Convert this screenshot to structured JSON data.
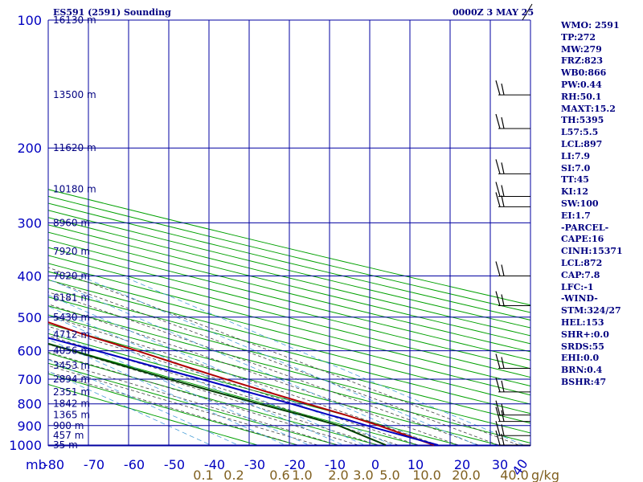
{
  "header": {
    "station": "ES591 (2591) Sounding",
    "time": "0000Z  3 MAY 25"
  },
  "stats": [
    "WMO: 2591",
    "TP:272",
    "MW:279",
    "FRZ:823",
    "WB0:866",
    "PW:0.44",
    "RH:50.1",
    "MAXT:15.2",
    "TH:5395",
    "L57:5.5",
    "LCL:897",
    "LI:7.9",
    "SI:7.0",
    "TT:45",
    "KI:12",
    "SW:100",
    "EI:1.7",
    "-PARCEL-",
    "CAPE:16",
    "CINH:15371",
    "LCL:872",
    "CAP:7.8",
    "LFC:-1",
    "-WIND-",
    "STM:324/27",
    "HEL:153",
    "SHR+:0.0",
    "SRDS:55",
    "EHI:0.0",
    "BRN:0.4",
    "BSHR:47"
  ],
  "colors": {
    "grid": "#0000a0",
    "dry_adiabat": "#00a000",
    "moist_adiabat": "#404040",
    "mixing_ratio": "#4a9fd8",
    "temperature": "#b00000",
    "dewpoint": "#004000",
    "parcel": "#0000c0",
    "axis_text": "#0000c0",
    "mixing_text": "#806020",
    "height_text": "#000080"
  },
  "chart_data": {
    "type": "line",
    "chart_kind": "skew-T log-P sounding",
    "x_axis_unit_label": "mb",
    "x_ticks": [
      -80,
      -70,
      -60,
      -50,
      -40,
      -30,
      -20,
      -10,
      0,
      10
    ],
    "y_ticks": [
      100,
      200,
      300,
      400,
      500,
      600,
      700,
      800,
      900,
      1000
    ],
    "y_scale": "log",
    "y_range": [
      1050,
      100
    ],
    "mixing_ratio_labels": [
      "0.1",
      "0.2",
      "0.6",
      "1.0",
      "2.0",
      "3.0",
      "5.0",
      "10.0",
      "20.0",
      "40.0"
    ],
    "mixing_ratio_unit": "g/kg",
    "right_tick_labels": [
      "20",
      "30",
      "40"
    ],
    "height_labels": [
      {
        "p": 100,
        "text": "16130 m"
      },
      {
        "p": 150,
        "text": "13500 m"
      },
      {
        "p": 200,
        "text": "11620 m"
      },
      {
        "p": 250,
        "text": "10180 m"
      },
      {
        "p": 300,
        "text": "8960 m"
      },
      {
        "p": 350,
        "text": "7920 m"
      },
      {
        "p": 400,
        "text": "7020 m"
      },
      {
        "p": 450,
        "text": "6181 m"
      },
      {
        "p": 500,
        "text": "5430 m"
      },
      {
        "p": 550,
        "text": "4712 m"
      },
      {
        "p": 600,
        "text": "4056 m"
      },
      {
        "p": 650,
        "text": "3453 m"
      },
      {
        "p": 700,
        "text": "2894 m"
      },
      {
        "p": 750,
        "text": "2351 m"
      },
      {
        "p": 800,
        "text": "1842 m"
      },
      {
        "p": 850,
        "text": "1365 m"
      },
      {
        "p": 900,
        "text": "900 m"
      },
      {
        "p": 950,
        "text": "457 m"
      },
      {
        "p": 1000,
        "text": "35 m"
      }
    ],
    "series": [
      {
        "key": "temperature",
        "points": [
          [
            100,
            -60
          ],
          [
            130,
            -56
          ],
          [
            150,
            -55
          ],
          [
            180,
            -47
          ],
          [
            200,
            -46
          ],
          [
            250,
            -47
          ],
          [
            300,
            -45
          ],
          [
            350,
            -40
          ],
          [
            400,
            -34
          ],
          [
            450,
            -28
          ],
          [
            500,
            -22
          ],
          [
            550,
            -18
          ],
          [
            600,
            -13
          ],
          [
            650,
            -9
          ],
          [
            700,
            -5
          ],
          [
            750,
            -1
          ],
          [
            800,
            3
          ],
          [
            850,
            7
          ],
          [
            900,
            10
          ],
          [
            950,
            12
          ],
          [
            1000,
            14
          ]
        ]
      },
      {
        "key": "dewpoint",
        "points": [
          [
            200,
            -75
          ],
          [
            250,
            -71
          ],
          [
            300,
            -66
          ],
          [
            350,
            -60
          ],
          [
            400,
            -54
          ],
          [
            450,
            -47
          ],
          [
            500,
            -40
          ],
          [
            550,
            -35
          ],
          [
            600,
            -29
          ],
          [
            650,
            -24
          ],
          [
            700,
            -19
          ],
          [
            750,
            -14
          ],
          [
            800,
            -9
          ],
          [
            850,
            -4
          ],
          [
            900,
            0
          ],
          [
            950,
            1
          ],
          [
            1000,
            2
          ]
        ]
      },
      {
        "key": "parcel",
        "points": [
          [
            220,
            -76
          ],
          [
            250,
            -73
          ],
          [
            300,
            -65
          ],
          [
            350,
            -58
          ],
          [
            400,
            -51
          ],
          [
            450,
            -44
          ],
          [
            500,
            -37
          ],
          [
            550,
            -30
          ],
          [
            600,
            -23
          ],
          [
            650,
            -17
          ],
          [
            700,
            -11
          ],
          [
            750,
            -6
          ],
          [
            800,
            -1
          ],
          [
            850,
            3
          ],
          [
            872,
            5
          ],
          [
            900,
            7
          ],
          [
            950,
            11
          ],
          [
            1000,
            15
          ]
        ]
      }
    ],
    "wind_barbs": [
      {
        "p": 150
      },
      {
        "p": 180
      },
      {
        "p": 230
      },
      {
        "p": 260
      },
      {
        "p": 275
      },
      {
        "p": 400
      },
      {
        "p": 470
      },
      {
        "p": 660
      },
      {
        "p": 750
      },
      {
        "p": 850
      },
      {
        "p": 880
      },
      {
        "p": 950
      },
      {
        "p": 1000
      }
    ]
  }
}
